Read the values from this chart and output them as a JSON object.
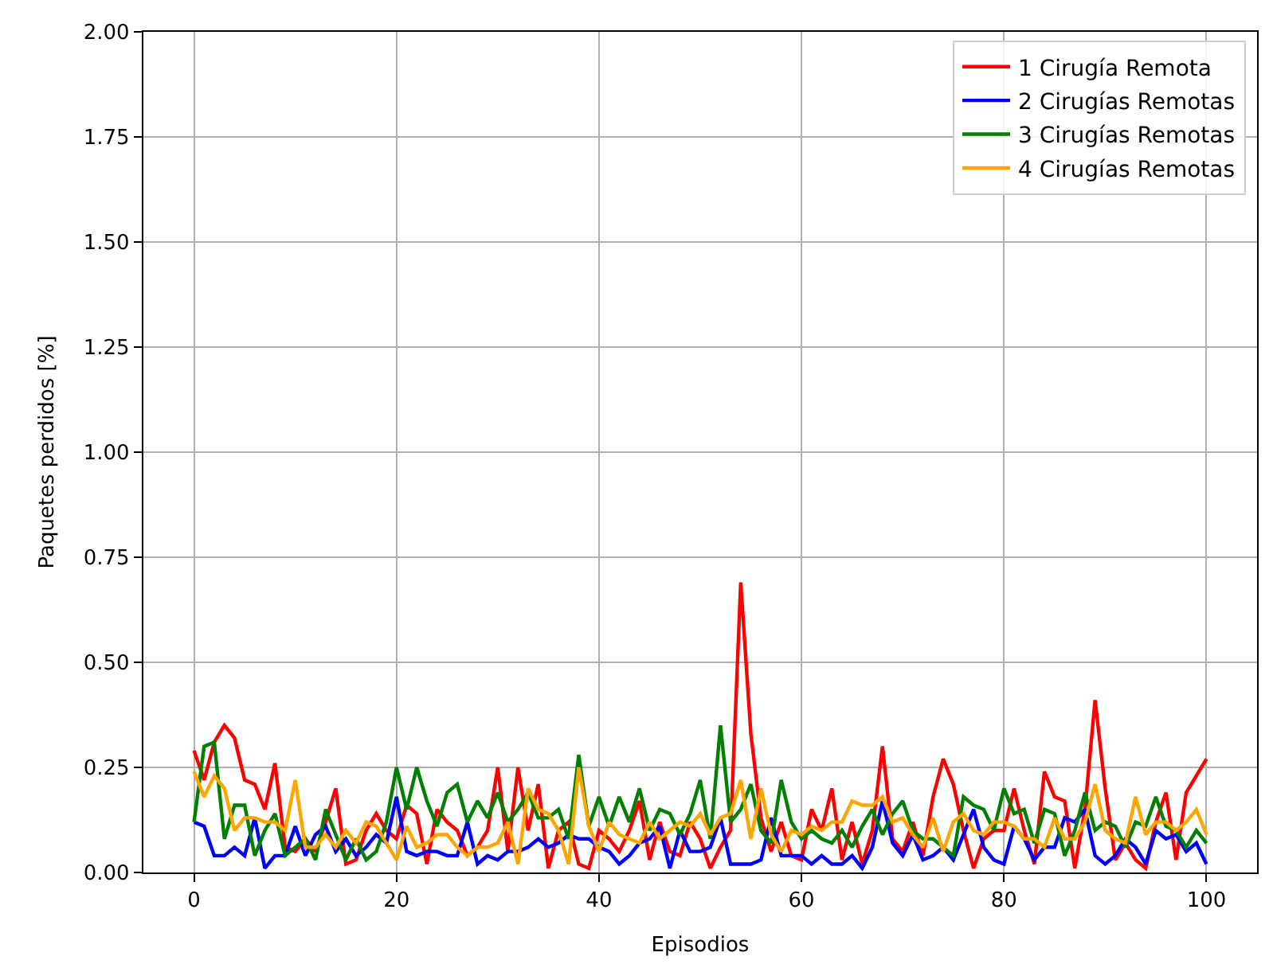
{
  "chart_data": {
    "type": "line",
    "xlabel": "Episodios",
    "ylabel": "Paquetes perdidos [%]",
    "x": [
      0,
      1,
      2,
      3,
      4,
      5,
      6,
      7,
      8,
      9,
      10,
      11,
      12,
      13,
      14,
      15,
      16,
      17,
      18,
      19,
      20,
      21,
      22,
      23,
      24,
      25,
      26,
      27,
      28,
      29,
      30,
      31,
      32,
      33,
      34,
      35,
      36,
      37,
      38,
      39,
      40,
      41,
      42,
      43,
      44,
      45,
      46,
      47,
      48,
      49,
      50,
      51,
      52,
      53,
      54,
      55,
      56,
      57,
      58,
      59,
      60,
      61,
      62,
      63,
      64,
      65,
      66,
      67,
      68,
      69,
      70,
      71,
      72,
      73,
      74,
      75,
      76,
      77,
      78,
      79,
      80,
      81,
      82,
      83,
      84,
      85,
      86,
      87,
      88,
      89,
      90,
      91,
      92,
      93,
      94,
      95,
      96,
      97,
      98,
      99,
      100
    ],
    "series": [
      {
        "name": "1 Cirugía Remota",
        "color": "#ff0000",
        "values": [
          0.29,
          0.22,
          0.31,
          0.35,
          0.32,
          0.22,
          0.21,
          0.15,
          0.26,
          0.06,
          0.05,
          0.08,
          0.05,
          0.12,
          0.2,
          0.02,
          0.03,
          0.1,
          0.14,
          0.1,
          0.08,
          0.16,
          0.14,
          0.02,
          0.15,
          0.12,
          0.1,
          0.04,
          0.06,
          0.1,
          0.25,
          0.05,
          0.25,
          0.1,
          0.21,
          0.01,
          0.1,
          0.12,
          0.02,
          0.01,
          0.1,
          0.08,
          0.05,
          0.1,
          0.17,
          0.03,
          0.12,
          0.05,
          0.04,
          0.12,
          0.08,
          0.01,
          0.06,
          0.1,
          0.69,
          0.33,
          0.13,
          0.05,
          0.12,
          0.04,
          0.03,
          0.15,
          0.1,
          0.2,
          0.03,
          0.12,
          0.02,
          0.1,
          0.3,
          0.08,
          0.05,
          0.12,
          0.04,
          0.18,
          0.27,
          0.21,
          0.1,
          0.01,
          0.08,
          0.1,
          0.1,
          0.2,
          0.1,
          0.02,
          0.24,
          0.18,
          0.17,
          0.01,
          0.15,
          0.41,
          0.2,
          0.03,
          0.07,
          0.03,
          0.01,
          0.12,
          0.19,
          0.03,
          0.19,
          0.23,
          0.27
        ]
      },
      {
        "name": "2 Cirugías Remotas",
        "color": "#0000ff",
        "values": [
          0.12,
          0.11,
          0.04,
          0.04,
          0.06,
          0.04,
          0.13,
          0.01,
          0.04,
          0.04,
          0.11,
          0.04,
          0.09,
          0.11,
          0.05,
          0.08,
          0.04,
          0.06,
          0.09,
          0.07,
          0.18,
          0.05,
          0.04,
          0.05,
          0.05,
          0.04,
          0.04,
          0.12,
          0.02,
          0.04,
          0.03,
          0.05,
          0.05,
          0.06,
          0.08,
          0.06,
          0.07,
          0.09,
          0.08,
          0.08,
          0.06,
          0.05,
          0.02,
          0.04,
          0.07,
          0.08,
          0.11,
          0.01,
          0.1,
          0.05,
          0.05,
          0.06,
          0.13,
          0.02,
          0.02,
          0.02,
          0.03,
          0.13,
          0.04,
          0.04,
          0.04,
          0.02,
          0.04,
          0.02,
          0.02,
          0.04,
          0.01,
          0.06,
          0.17,
          0.07,
          0.04,
          0.09,
          0.03,
          0.04,
          0.06,
          0.03,
          0.09,
          0.15,
          0.06,
          0.03,
          0.02,
          0.11,
          0.08,
          0.03,
          0.06,
          0.06,
          0.13,
          0.12,
          0.15,
          0.04,
          0.02,
          0.04,
          0.08,
          0.06,
          0.02,
          0.1,
          0.08,
          0.09,
          0.05,
          0.07,
          0.02
        ]
      },
      {
        "name": "3 Cirugías Remotas",
        "color": "#008000",
        "values": [
          0.12,
          0.3,
          0.31,
          0.08,
          0.16,
          0.16,
          0.04,
          0.1,
          0.14,
          0.04,
          0.06,
          0.08,
          0.03,
          0.15,
          0.09,
          0.03,
          0.08,
          0.03,
          0.05,
          0.12,
          0.25,
          0.15,
          0.25,
          0.17,
          0.11,
          0.19,
          0.21,
          0.12,
          0.17,
          0.13,
          0.19,
          0.12,
          0.15,
          0.19,
          0.13,
          0.13,
          0.15,
          0.08,
          0.28,
          0.11,
          0.18,
          0.11,
          0.18,
          0.12,
          0.2,
          0.1,
          0.15,
          0.14,
          0.09,
          0.14,
          0.22,
          0.08,
          0.35,
          0.12,
          0.15,
          0.21,
          0.1,
          0.07,
          0.22,
          0.12,
          0.08,
          0.1,
          0.08,
          0.07,
          0.1,
          0.06,
          0.11,
          0.15,
          0.09,
          0.14,
          0.17,
          0.1,
          0.08,
          0.08,
          0.06,
          0.04,
          0.18,
          0.16,
          0.15,
          0.1,
          0.2,
          0.14,
          0.15,
          0.07,
          0.15,
          0.14,
          0.04,
          0.1,
          0.19,
          0.1,
          0.12,
          0.11,
          0.06,
          0.12,
          0.11,
          0.18,
          0.11,
          0.1,
          0.06,
          0.1,
          0.07
        ]
      },
      {
        "name": "4 Cirugías Remotas",
        "color": "#ffa500",
        "values": [
          0.24,
          0.18,
          0.23,
          0.2,
          0.1,
          0.13,
          0.13,
          0.12,
          0.12,
          0.1,
          0.22,
          0.06,
          0.06,
          0.09,
          0.06,
          0.1,
          0.07,
          0.12,
          0.11,
          0.07,
          0.03,
          0.11,
          0.06,
          0.07,
          0.09,
          0.09,
          0.06,
          0.04,
          0.06,
          0.06,
          0.07,
          0.12,
          0.02,
          0.2,
          0.15,
          0.14,
          0.1,
          0.02,
          0.25,
          0.11,
          0.05,
          0.12,
          0.09,
          0.08,
          0.07,
          0.12,
          0.08,
          0.1,
          0.12,
          0.11,
          0.14,
          0.09,
          0.13,
          0.14,
          0.22,
          0.08,
          0.2,
          0.09,
          0.05,
          0.1,
          0.09,
          0.11,
          0.1,
          0.12,
          0.12,
          0.17,
          0.16,
          0.16,
          0.18,
          0.12,
          0.13,
          0.09,
          0.06,
          0.13,
          0.05,
          0.12,
          0.14,
          0.1,
          0.09,
          0.12,
          0.12,
          0.11,
          0.08,
          0.08,
          0.06,
          0.13,
          0.08,
          0.08,
          0.12,
          0.21,
          0.1,
          0.08,
          0.07,
          0.18,
          0.09,
          0.12,
          0.12,
          0.1,
          0.12,
          0.15,
          0.09
        ]
      }
    ],
    "xlim": [
      -5,
      105
    ],
    "xticks": [
      0,
      20,
      40,
      60,
      80,
      100
    ],
    "ylim": [
      0,
      2
    ],
    "yticks": [
      {
        "value": 0,
        "label": "0.00"
      },
      0.25,
      {
        "value": 0.5,
        "label": "0.50"
      },
      0.75,
      {
        "value": 1,
        "label": "1.00"
      },
      1.25,
      {
        "value": 1.5,
        "label": "1.50"
      },
      1.75,
      {
        "value": 2,
        "label": "2.00"
      }
    ],
    "grid": true,
    "legend": "top right",
    "marker": "none",
    "line_style": "solid"
  }
}
